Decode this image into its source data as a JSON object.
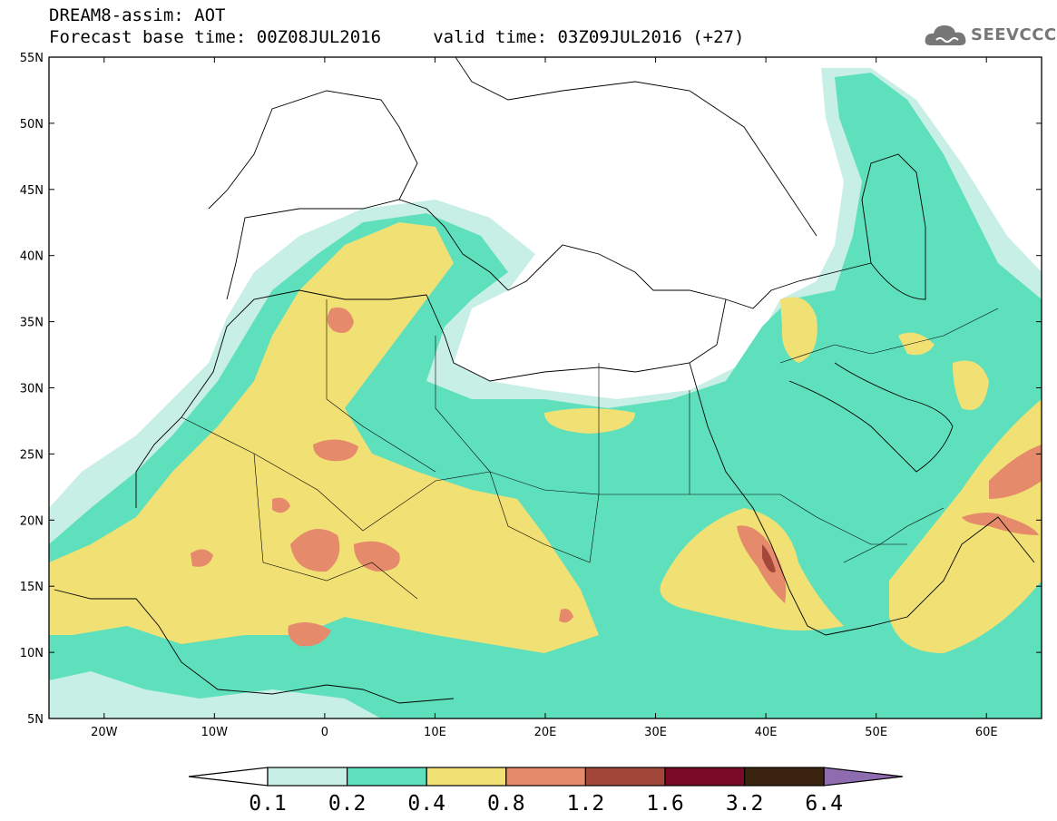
{
  "header": {
    "title": "DREAM8-assim: AOT",
    "subtitle": "Forecast base time: 00Z08JUL2016     valid time: 03Z09JUL2016 (+27)",
    "logo_text": "SEEVCCC",
    "logo_icon": "cloud-icon"
  },
  "map": {
    "lon_range": [
      -25,
      65
    ],
    "lat_range": [
      5,
      55
    ],
    "lat_ticks": [
      "55N",
      "50N",
      "45N",
      "40N",
      "35N",
      "30N",
      "25N",
      "20N",
      "15N",
      "10N",
      "5N"
    ],
    "lon_ticks": [
      "20W",
      "10W",
      "0",
      "10E",
      "20E",
      "30E",
      "40E",
      "50E",
      "60E"
    ]
  },
  "colorbar": {
    "levels": [
      "0.1",
      "0.2",
      "0.4",
      "0.8",
      "1.2",
      "1.6",
      "3.2",
      "6.4"
    ],
    "colors": [
      "#c7efe6",
      "#5fe0bd",
      "#f1e074",
      "#e58a6b",
      "#a3473b",
      "#7a0a25",
      "#3a2410",
      "#8f6bb0"
    ]
  }
}
